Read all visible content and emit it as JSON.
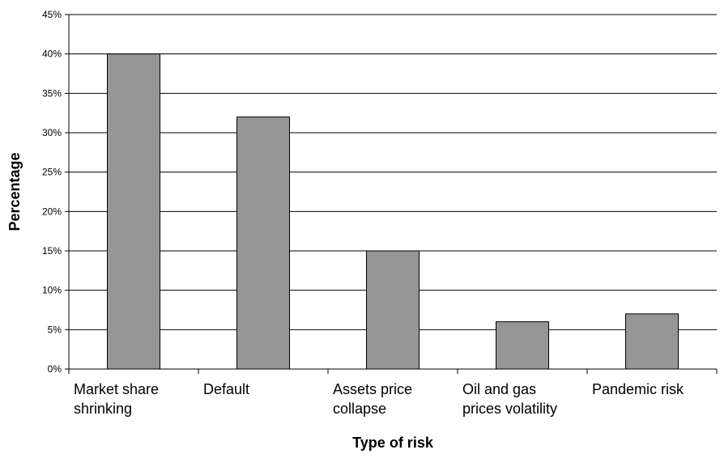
{
  "chart_data": {
    "type": "bar",
    "title": "",
    "xlabel": "Type of risk",
    "ylabel": "Percentage",
    "categories": [
      [
        "Market share",
        "shrinking"
      ],
      [
        "Default"
      ],
      [
        "Assets price",
        "collapse"
      ],
      [
        "Oil and gas",
        "prices volatility"
      ],
      [
        "Pandemic risk"
      ]
    ],
    "values": [
      40,
      32,
      15,
      6,
      7
    ],
    "ylim": [
      0,
      45
    ],
    "yticks": [
      0,
      5,
      10,
      15,
      20,
      25,
      30,
      35,
      40,
      45
    ],
    "ytick_labels": [
      "0%",
      "5%",
      "10%",
      "15%",
      "20%",
      "25%",
      "30%",
      "35%",
      "40%",
      "45%"
    ],
    "grid": true,
    "legend": "none",
    "colors": {
      "bar": "#969696",
      "bar_stroke": "#000000",
      "grid": "#000000",
      "axis": "#000000"
    }
  }
}
